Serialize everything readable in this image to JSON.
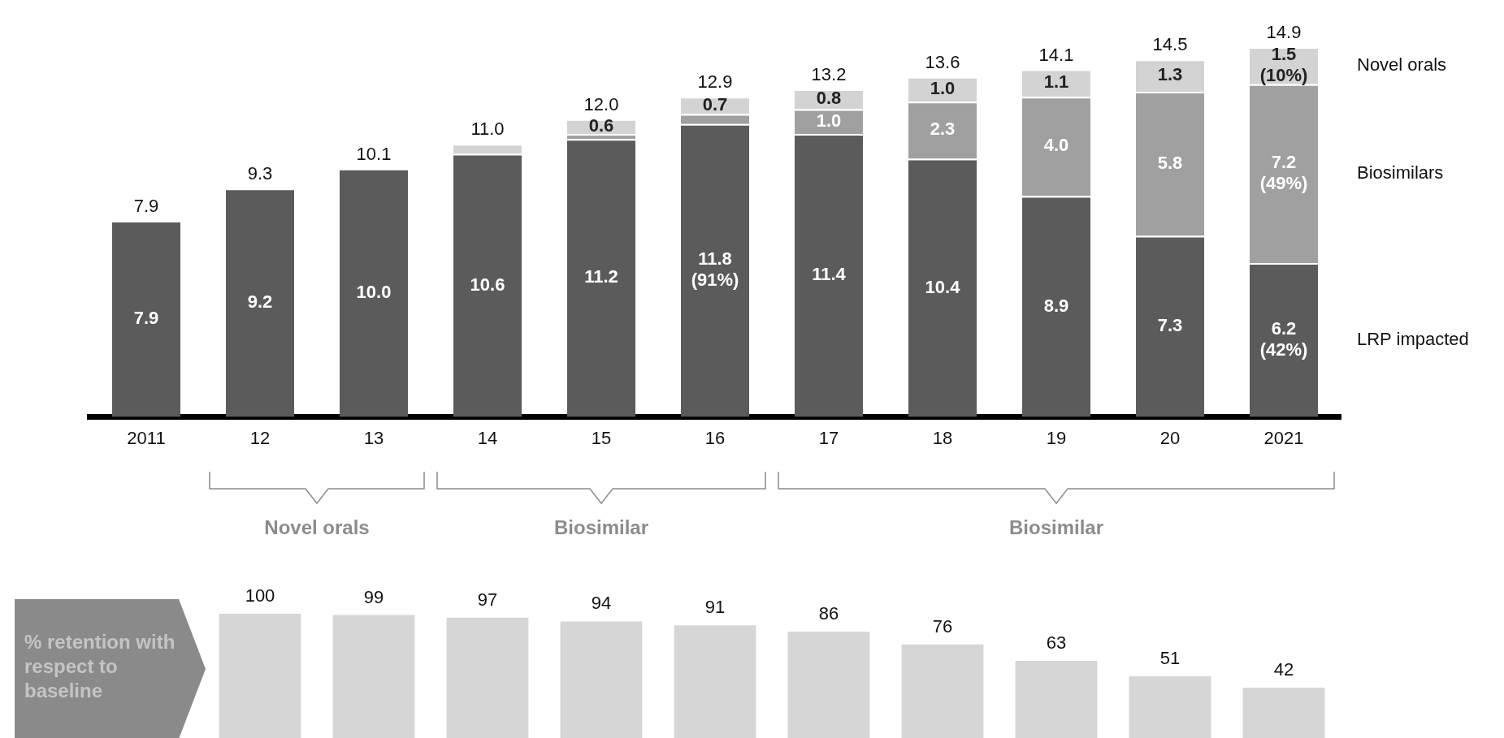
{
  "chart_data": [
    {
      "type": "bar",
      "stacked": true,
      "categories": [
        "2011",
        "12",
        "13",
        "14",
        "15",
        "16",
        "17",
        "18",
        "19",
        "20",
        "2021"
      ],
      "series": [
        {
          "name": "LRP impacted",
          "color": "#5b5b5b",
          "values": [
            7.9,
            9.2,
            10.0,
            10.6,
            11.2,
            11.8,
            11.4,
            10.4,
            8.9,
            7.3,
            6.2
          ],
          "value_labels": [
            "7.9",
            "9.2",
            "10.0",
            "10.6",
            "11.2",
            "11.8 (91%)",
            "11.4",
            "10.4",
            "8.9",
            "7.3",
            "6.2 (42%)"
          ]
        },
        {
          "name": "Biosimilars",
          "color": "#a0a0a0",
          "values": [
            null,
            null,
            null,
            null,
            0.2,
            0.4,
            1.0,
            2.3,
            4.0,
            5.8,
            7.2
          ],
          "value_labels": [
            null,
            null,
            null,
            null,
            null,
            null,
            "1.0",
            "2.3",
            "4.0",
            "5.8",
            "7.2 (49%)"
          ]
        },
        {
          "name": "Novel orals",
          "color": "#d3d3d3",
          "values": [
            null,
            null,
            null,
            0.4,
            0.6,
            0.7,
            0.8,
            1.0,
            1.1,
            1.3,
            1.5
          ],
          "value_labels": [
            null,
            null,
            null,
            null,
            "0.6",
            "0.7",
            "0.8",
            "1.0",
            "1.1",
            "1.3",
            "1.5 (10%)"
          ]
        }
      ],
      "totals": [
        "7.9",
        "9.3",
        "10.1",
        "11.0",
        "12.0",
        "12.9",
        "13.2",
        "13.6",
        "14.1",
        "14.5",
        "14.9"
      ],
      "legend": "right",
      "tick_labels": "x",
      "annotations": [
        "Novel orals",
        "Biosimilar",
        "Biosimilar"
      ]
    },
    {
      "type": "bar",
      "ylabel": "% retention with respect to baseline",
      "categories": [
        "12",
        "13",
        "14",
        "15",
        "16",
        "17",
        "18",
        "19",
        "20",
        "2021"
      ],
      "values": [
        100,
        99,
        97,
        94,
        91,
        86,
        76,
        63,
        51,
        42
      ],
      "color": "#d6d6d6",
      "data_labels": true,
      "tick_labels": false
    }
  ]
}
